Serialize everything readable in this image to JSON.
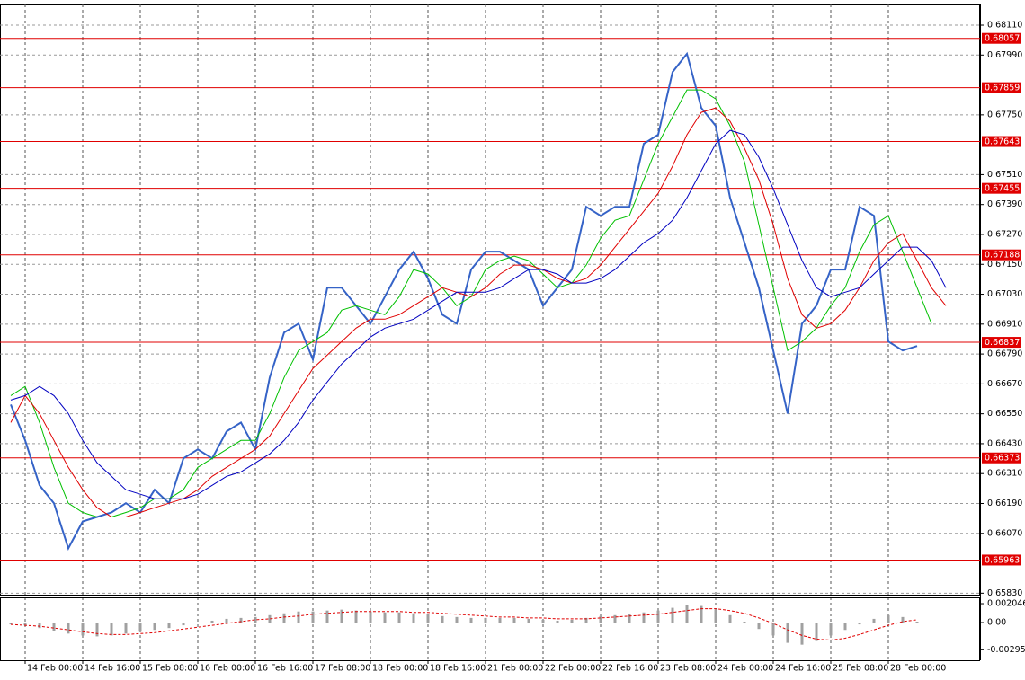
{
  "chart_data": [
    {
      "type": "line",
      "categories": [
        null,
        "14 Feb 00:00",
        null,
        null,
        null,
        "14 Feb 16:00",
        null,
        null,
        null,
        "15 Feb 08:00",
        null,
        null,
        null,
        "16 Feb 00:00",
        null,
        null,
        null,
        "16 Feb 16:00",
        null,
        null,
        null,
        "17 Feb 08:00",
        null,
        null,
        null,
        "18 Feb 00:00",
        null,
        null,
        null,
        "18 Feb 16:00",
        null,
        null,
        null,
        "21 Feb 00:00",
        null,
        null,
        null,
        "22 Feb 00:00",
        null,
        null,
        null,
        "22 Feb 16:00",
        null,
        null,
        null,
        "23 Feb 08:00",
        null,
        null,
        null,
        "24 Feb 00:00",
        null,
        null,
        null,
        "24 Feb 16:00",
        null,
        null,
        null,
        "25 Feb 08:00",
        null,
        null,
        null,
        "28 Feb 00:00",
        null,
        null,
        null,
        null
      ],
      "series": [
        {
          "color": "#3563c7",
          "values": [
            0.66587,
            0.66443,
            0.66263,
            0.66191,
            0.6601,
            0.66118,
            0.66136,
            0.66154,
            0.66191,
            0.66154,
            0.66245,
            0.66191,
            0.66371,
            0.66407,
            0.66371,
            0.66479,
            0.66515,
            0.66407,
            0.66696,
            0.66876,
            0.66912,
            0.66768,
            0.67056,
            0.67056,
            0.66984,
            0.66912,
            0.6702,
            0.67129,
            0.67201,
            0.67093,
            0.66948,
            0.66912,
            0.67129,
            0.67201,
            0.67201,
            0.67165,
            0.67129,
            0.66984,
            0.67056,
            0.67129,
            0.67381,
            0.67345,
            0.67381,
            0.67381,
            0.67634,
            0.6767,
            0.67922,
            0.67995,
            0.67778,
            0.67706,
            0.67417,
            0.67237,
            0.67056,
            0.66804,
            0.66551,
            0.66912,
            0.66984,
            0.67129,
            0.67129,
            0.67381,
            0.67345,
            0.6684,
            0.66804,
            0.66822,
            null,
            null
          ]
        },
        {
          "color": "#00c000",
          "values": [
            0.66623,
            0.6666,
            0.66515,
            0.66335,
            0.66191,
            0.66154,
            0.66136,
            0.66136,
            0.66154,
            0.66173,
            0.66209,
            0.66209,
            0.66245,
            0.66335,
            0.66371,
            0.66407,
            0.66443,
            0.66443,
            0.66551,
            0.66696,
            0.66804,
            0.6684,
            0.66876,
            0.66966,
            0.66984,
            0.66966,
            0.66948,
            0.6702,
            0.67129,
            0.67111,
            0.67056,
            0.66984,
            0.6702,
            0.67129,
            0.67165,
            0.67183,
            0.67165,
            0.67111,
            0.67056,
            0.67075,
            0.67147,
            0.67255,
            0.67327,
            0.67345,
            0.67489,
            0.67634,
            0.67742,
            0.6785,
            0.6785,
            0.67814,
            0.67706,
            0.67562,
            0.67309,
            0.67056,
            0.66804,
            0.6684,
            0.66894,
            0.66984,
            0.67056,
            0.67201,
            0.67309,
            0.67345,
            0.67201,
            0.67056,
            0.66912,
            null
          ]
        },
        {
          "color": "#e00000",
          "values": [
            0.66515,
            0.66623,
            0.66551,
            0.66443,
            0.66335,
            0.66245,
            0.66173,
            0.66136,
            0.66136,
            0.66154,
            0.66173,
            0.66191,
            0.66209,
            0.66245,
            0.66299,
            0.66335,
            0.66371,
            0.66407,
            0.66461,
            0.66551,
            0.66642,
            0.66732,
            0.66786,
            0.6684,
            0.66894,
            0.6693,
            0.6693,
            0.66948,
            0.66984,
            0.6702,
            0.67056,
            0.67038,
            0.6702,
            0.67056,
            0.67111,
            0.67147,
            0.67147,
            0.67129,
            0.67093,
            0.67075,
            0.67093,
            0.67147,
            0.67219,
            0.67291,
            0.67363,
            0.67435,
            0.67544,
            0.6767,
            0.6776,
            0.67778,
            0.67724,
            0.67616,
            0.67489,
            0.67309,
            0.67093,
            0.66948,
            0.66894,
            0.66912,
            0.66966,
            0.67056,
            0.67165,
            0.67237,
            0.67273,
            0.67165,
            0.67056,
            0.66984
          ]
        },
        {
          "color": "#0000c0",
          "values": [
            0.66605,
            0.66623,
            0.6666,
            0.66623,
            0.66551,
            0.66443,
            0.66353,
            0.66299,
            0.66245,
            0.66227,
            0.66209,
            0.66209,
            0.66209,
            0.66227,
            0.66263,
            0.66299,
            0.66317,
            0.66353,
            0.66389,
            0.66443,
            0.66515,
            0.66605,
            0.66678,
            0.6675,
            0.66804,
            0.66858,
            0.66894,
            0.66912,
            0.6693,
            0.66966,
            0.67002,
            0.67038,
            0.67038,
            0.67038,
            0.67056,
            0.67093,
            0.67129,
            0.67129,
            0.67111,
            0.67075,
            0.67075,
            0.67093,
            0.67129,
            0.67183,
            0.67237,
            0.67273,
            0.67327,
            0.67417,
            0.67526,
            0.67634,
            0.67688,
            0.6767,
            0.6758,
            0.67453,
            0.67309,
            0.67165,
            0.67056,
            0.6702,
            0.67038,
            0.67056,
            0.67111,
            0.67165,
            0.67219,
            0.67219,
            0.67165,
            0.67056
          ]
        }
      ],
      "levels": [
        0.68057,
        0.67859,
        0.67643,
        0.67455,
        0.67188,
        0.66837,
        0.66373,
        0.65963
      ],
      "level_color": "#e00000",
      "ylim": [
        0.65824,
        0.68193
      ],
      "yticks": [
        {
          "value": 0.6811,
          "label": "0.68110"
        },
        {
          "value": 0.6799,
          "label": "0.67990"
        },
        {
          "value": 0.6775,
          "label": "0.67750"
        },
        {
          "value": 0.6751,
          "label": "0.67510"
        },
        {
          "value": 0.6739,
          "label": "0.67390"
        },
        {
          "value": 0.6727,
          "label": "0.67270"
        },
        {
          "value": 0.6715,
          "label": "0.67150"
        },
        {
          "value": 0.6703,
          "label": "0.67030"
        },
        {
          "value": 0.6691,
          "label": "0.66910"
        },
        {
          "value": 0.6679,
          "label": "0.66790"
        },
        {
          "value": 0.6667,
          "label": "0.66670"
        },
        {
          "value": 0.6655,
          "label": "0.66550"
        },
        {
          "value": 0.6643,
          "label": "0.66430"
        },
        {
          "value": 0.6631,
          "label": "0.66310"
        },
        {
          "value": 0.6619,
          "label": "0.66190"
        },
        {
          "value": 0.6607,
          "label": "0.66070"
        },
        {
          "value": 0.6583,
          "label": "0.65830"
        }
      ],
      "grid": true
    },
    {
      "type": "oscillator",
      "series": [
        {
          "color": "#a0a0a0",
          "style": "histogram",
          "values": [
            -0.0002,
            -0.0003,
            -0.0006,
            -0.0009,
            -0.0012,
            -0.0014,
            -0.0015,
            -0.0014,
            -0.0012,
            -0.001,
            -0.0008,
            -0.0006,
            -0.0003,
            0,
            0.0002,
            0.0004,
            0.0005,
            0.0006,
            0.0008,
            0.001,
            0.0012,
            0.0012,
            0.0013,
            0.0014,
            0.0013,
            0.0012,
            0.0011,
            0.0011,
            0.001,
            0.0009,
            0.0007,
            0.0006,
            0.0005,
            0.0005,
            0.0005,
            0.0005,
            0.0004,
            0.0003,
            0.0002,
            0.0003,
            0.0005,
            0.0007,
            0.0008,
            0.0009,
            0.0011,
            0.0013,
            0.0016,
            0.0019,
            0.0018,
            0.0014,
            0.0008,
            0.0001,
            -0.0007,
            -0.0014,
            -0.0022,
            -0.0024,
            -0.002,
            -0.0014,
            -0.0008,
            -0.0002,
            0.0004,
            0.0008,
            0.0006,
            0.0001,
            null,
            null
          ]
        },
        {
          "color": "#e00000",
          "style": "dashed",
          "values": [
            -0.0002,
            -0.0003,
            -0.0004,
            -0.0006,
            -0.0008,
            -0.001,
            -0.0012,
            -0.0013,
            -0.0013,
            -0.0012,
            -0.0011,
            -0.0009,
            -0.0007,
            -0.0005,
            -0.0003,
            -0.0001,
            0.0001,
            0.0003,
            0.0004,
            0.0006,
            0.0007,
            0.0009,
            0.001,
            0.0011,
            0.0012,
            0.0012,
            0.0012,
            0.0012,
            0.0011,
            0.0011,
            0.001,
            0.0009,
            0.0008,
            0.0007,
            0.0006,
            0.0006,
            0.0005,
            0.0005,
            0.0004,
            0.0004,
            0.0004,
            0.0005,
            0.0006,
            0.0007,
            0.0008,
            0.0009,
            0.0011,
            0.0013,
            0.0015,
            0.0015,
            0.0013,
            0.001,
            0.0005,
            -0.0001,
            -0.0008,
            -0.0014,
            -0.0018,
            -0.0019,
            -0.0017,
            -0.0013,
            -0.0008,
            -0.0003,
            0.0001,
            0.0003,
            null,
            null
          ]
        }
      ],
      "ylim": [
        -0.00409,
        0.00273
      ],
      "yticks": [
        0.002046,
        {
          "value": 0,
          "label": "0.00"
        },
        -0.002952
      ]
    }
  ]
}
